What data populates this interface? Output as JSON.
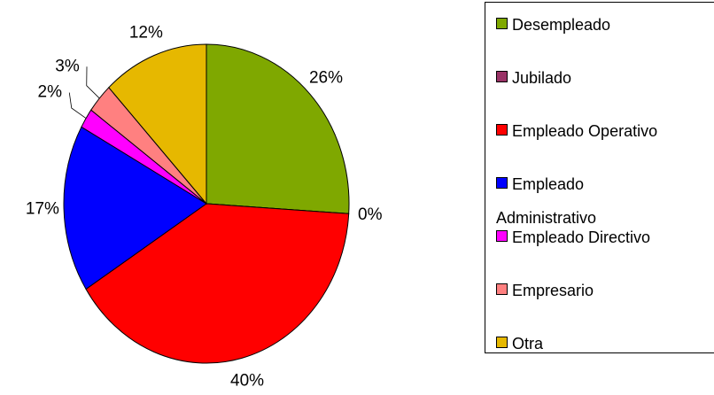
{
  "chart_data": {
    "type": "pie",
    "categories": [
      "Desempleado",
      "Jubilado",
      "Empleado Operativo",
      "Empleado Administrativo",
      "Empleado Directivo",
      "Empresario",
      "Otra"
    ],
    "values": [
      26,
      0,
      40,
      17,
      2,
      3,
      12
    ],
    "value_labels": [
      "26%",
      "0%",
      "40%",
      "17%",
      "2%",
      "3%",
      "12%"
    ],
    "colors": [
      "#7fa800",
      "#993366",
      "#ff0000",
      "#0000ff",
      "#ff00ff",
      "#ff8080",
      "#e6b800"
    ],
    "legend": "right"
  }
}
